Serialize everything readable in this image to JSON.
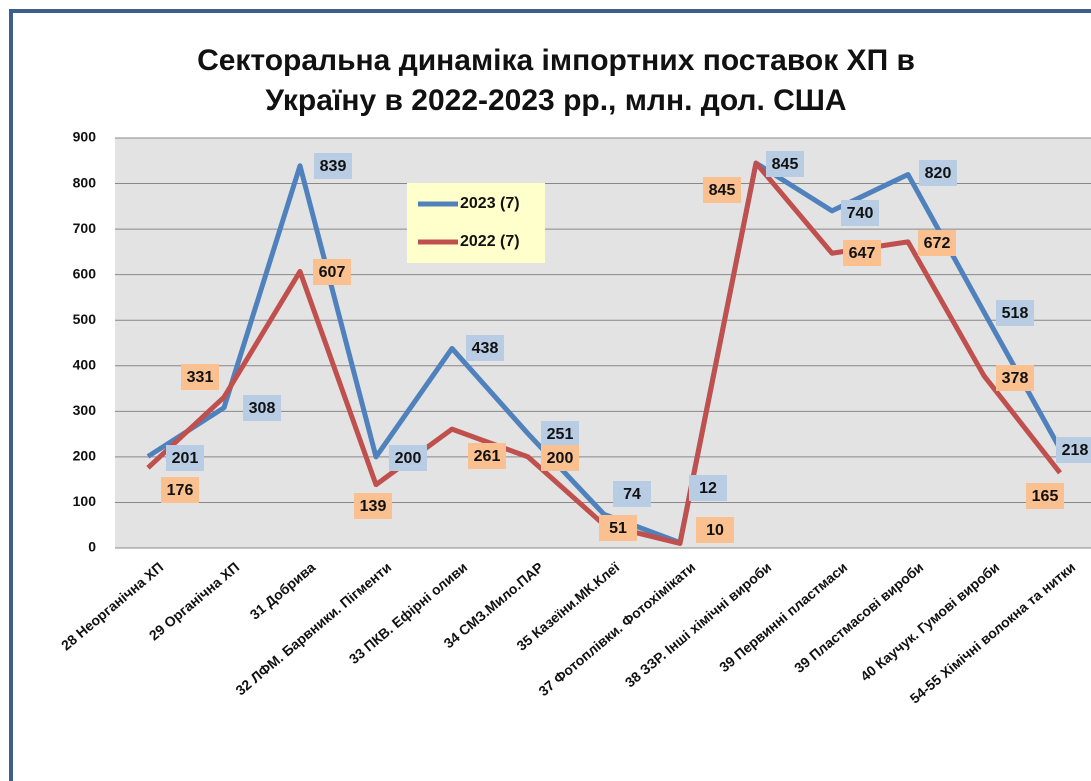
{
  "chart_data": {
    "type": "line",
    "title": "Секторальна динаміка імпортних поставок ХП в",
    "subtitle": "Україну в 2022-2023 рр., млн. дол. США",
    "categories": [
      "28 Неорганічна ХП",
      "29 Органічна ХП",
      "31 Добрива",
      "32 ЛФМ. Барвники. Пігменти",
      "33 ПКВ. Ефірні оливи",
      "34 СМЗ.Мило.ПАР",
      "35 Казеїни.МК.Клеї",
      "37 Фотоплівки. Фотохімікати",
      "38 ЗЗР. Інші хімічні вироби",
      "39 Первинні пластмаси",
      "39 Пластмасові вироби",
      "40 Каучук. Гумові вироби",
      "54-55 Хімічні волокна та нитки"
    ],
    "series": [
      {
        "name": "2023 (7)",
        "color": "#4f81bd",
        "values": [
          201,
          308,
          839,
          200,
          438,
          251,
          74,
          12,
          845,
          740,
          820,
          518,
          218
        ]
      },
      {
        "name": "2022 (7)",
        "color": "#c0504d",
        "values": [
          176,
          331,
          607,
          139,
          261,
          200,
          51,
          10,
          845,
          647,
          672,
          378,
          165
        ]
      }
    ],
    "ylim": [
      0,
      900
    ],
    "yticks": [
      0,
      100,
      200,
      300,
      400,
      500,
      600,
      700,
      800,
      900
    ],
    "grid": true
  }
}
